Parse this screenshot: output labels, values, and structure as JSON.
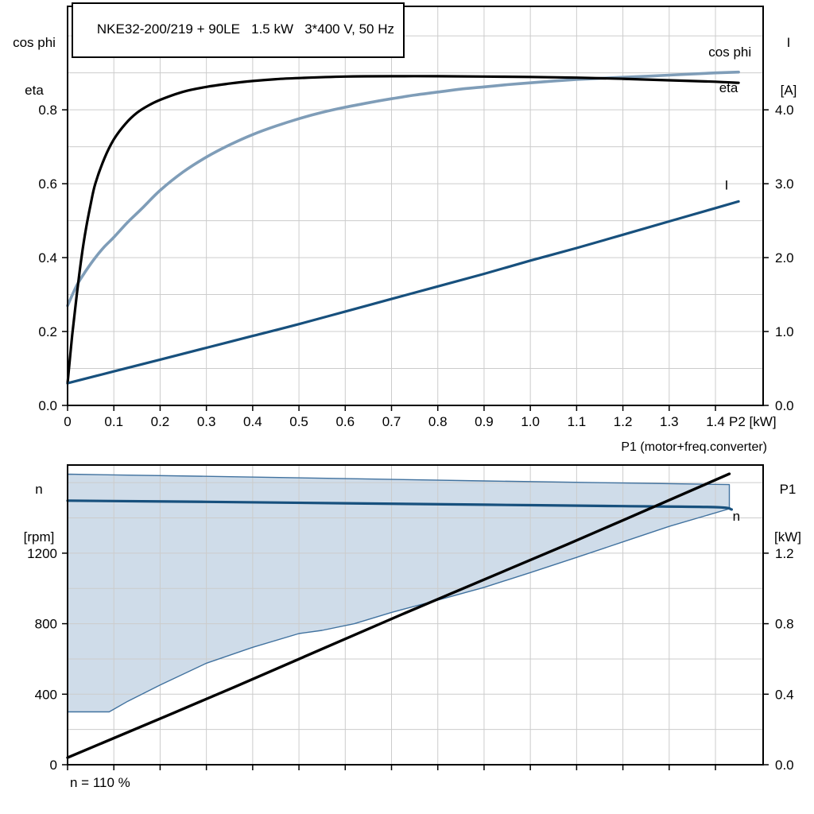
{
  "colors": {
    "black": "#000000",
    "dark_blue": "#17507d",
    "light_blue": "#7f9db8",
    "grid": "#cccccc",
    "area_fill": "#cfdce9",
    "area_edge": "#41729f",
    "frame": "#000000"
  },
  "labels": {
    "top_left_line1": "cos phi",
    "top_left_line2": "eta",
    "top_right_line1": "I",
    "top_right_line2": "[A]",
    "bottom_left_line1": "n",
    "bottom_left_line2": "[rpm]",
    "bottom_right_line1": "P1",
    "bottom_right_line2": "[kW]",
    "p1_annotation": "P1 (motor+freq.converter)",
    "footnote": "n = 110 %"
  },
  "chart_data": [
    {
      "id": "top",
      "type": "line",
      "title": "NKE32-200/219 + 90LE   1.5 kW   3*400 V, 50 Hz",
      "legend_position": "curve-end-labels",
      "x_axis": {
        "label": "P2 [kW]",
        "range": [
          0,
          1.503
        ],
        "ticks": [
          0,
          0.1,
          0.2,
          0.3,
          0.4,
          0.5,
          0.6,
          0.7,
          0.8,
          0.9,
          1.0,
          1.1,
          1.2,
          1.3,
          1.4
        ],
        "tick_labels": [
          "0",
          "0.1",
          "0.2",
          "0.3",
          "0.4",
          "0.5",
          "0.6",
          "0.7",
          "0.8",
          "0.9",
          "1.0",
          "1.1",
          "1.2",
          "1.3",
          "1.4"
        ],
        "grid_lines": [
          0.1,
          0.2,
          0.3,
          0.4,
          0.5,
          0.6,
          0.7,
          0.8,
          0.9,
          1.0,
          1.1,
          1.2,
          1.3,
          1.4
        ]
      },
      "y_left": {
        "label": "cos phi / eta",
        "range": [
          0,
          1.08
        ],
        "ticks": [
          0,
          0.2,
          0.4,
          0.6,
          0.8
        ],
        "tick_labels": [
          "0.0",
          "0.2",
          "0.4",
          "0.6",
          "0.8"
        ],
        "grid_lines": [
          0.1,
          0.2,
          0.3,
          0.4,
          0.5,
          0.6,
          0.7,
          0.8,
          0.9,
          1.0
        ]
      },
      "y_right": {
        "label": "I [A]",
        "range": [
          0,
          5.4
        ],
        "ticks": [
          0,
          1,
          2,
          3,
          4
        ],
        "tick_labels": [
          "0.0",
          "1.0",
          "2.0",
          "3.0",
          "4.0"
        ]
      },
      "series": [
        {
          "name": "cos phi",
          "axis": "left",
          "color": "light_blue",
          "width": 3.6,
          "label_at": [
            1.385,
            0.945
          ],
          "points": [
            [
              0,
              0.27
            ],
            [
              0.02,
              0.325
            ],
            [
              0.04,
              0.365
            ],
            [
              0.06,
              0.4
            ],
            [
              0.08,
              0.43
            ],
            [
              0.1,
              0.455
            ],
            [
              0.13,
              0.496
            ],
            [
              0.16,
              0.532
            ],
            [
              0.2,
              0.582
            ],
            [
              0.25,
              0.632
            ],
            [
              0.3,
              0.672
            ],
            [
              0.35,
              0.705
            ],
            [
              0.4,
              0.733
            ],
            [
              0.45,
              0.756
            ],
            [
              0.5,
              0.776
            ],
            [
              0.55,
              0.793
            ],
            [
              0.6,
              0.807
            ],
            [
              0.65,
              0.819
            ],
            [
              0.7,
              0.83
            ],
            [
              0.75,
              0.84
            ],
            [
              0.8,
              0.848
            ],
            [
              0.85,
              0.856
            ],
            [
              0.9,
              0.862
            ],
            [
              0.95,
              0.868
            ],
            [
              1.0,
              0.873
            ],
            [
              1.05,
              0.878
            ],
            [
              1.1,
              0.882
            ],
            [
              1.15,
              0.885
            ],
            [
              1.2,
              0.888
            ],
            [
              1.25,
              0.891
            ],
            [
              1.3,
              0.894
            ],
            [
              1.35,
              0.897
            ],
            [
              1.4,
              0.9
            ],
            [
              1.45,
              0.902
            ]
          ]
        },
        {
          "name": "eta",
          "axis": "left",
          "color": "black",
          "width": 3.2,
          "label_at": [
            1.408,
            0.848
          ],
          "points": [
            [
              0,
              0.06
            ],
            [
              0.01,
              0.19
            ],
            [
              0.02,
              0.3
            ],
            [
              0.03,
              0.4
            ],
            [
              0.04,
              0.48
            ],
            [
              0.05,
              0.545
            ],
            [
              0.06,
              0.6
            ],
            [
              0.08,
              0.67
            ],
            [
              0.1,
              0.72
            ],
            [
              0.125,
              0.762
            ],
            [
              0.15,
              0.792
            ],
            [
              0.175,
              0.812
            ],
            [
              0.2,
              0.827
            ],
            [
              0.25,
              0.849
            ],
            [
              0.3,
              0.862
            ],
            [
              0.35,
              0.871
            ],
            [
              0.4,
              0.878
            ],
            [
              0.45,
              0.883
            ],
            [
              0.5,
              0.886
            ],
            [
              0.6,
              0.89
            ],
            [
              0.7,
              0.891
            ],
            [
              0.8,
              0.891
            ],
            [
              0.9,
              0.89
            ],
            [
              1.0,
              0.889
            ],
            [
              1.1,
              0.887
            ],
            [
              1.2,
              0.884
            ],
            [
              1.3,
              0.88
            ],
            [
              1.4,
              0.876
            ],
            [
              1.45,
              0.873
            ]
          ]
        },
        {
          "name": "I",
          "axis": "right",
          "color": "dark_blue",
          "width": 3.2,
          "label_at": [
            1.42,
            2.92
          ],
          "points": [
            [
              0,
              0.3
            ],
            [
              0.1,
              0.46
            ],
            [
              0.2,
              0.62
            ],
            [
              0.3,
              0.78
            ],
            [
              0.4,
              0.94
            ],
            [
              0.5,
              1.1
            ],
            [
              0.6,
              1.27
            ],
            [
              0.7,
              1.44
            ],
            [
              0.8,
              1.61
            ],
            [
              0.9,
              1.78
            ],
            [
              1.0,
              1.96
            ],
            [
              1.1,
              2.13
            ],
            [
              1.2,
              2.31
            ],
            [
              1.3,
              2.49
            ],
            [
              1.4,
              2.67
            ],
            [
              1.45,
              2.76
            ]
          ]
        }
      ]
    },
    {
      "id": "bottom",
      "type": "line",
      "title": "",
      "x_axis": {
        "label": "",
        "range": [
          0,
          1.503
        ],
        "ticks": [
          0,
          0.1,
          0.2,
          0.3,
          0.4,
          0.5,
          0.6,
          0.7,
          0.8,
          0.9,
          1.0,
          1.1,
          1.2,
          1.3,
          1.4
        ],
        "tick_labels": [],
        "grid_lines": [
          0.1,
          0.2,
          0.3,
          0.4,
          0.5,
          0.6,
          0.7,
          0.8,
          0.9,
          1.0,
          1.1,
          1.2,
          1.3,
          1.4
        ]
      },
      "y_left": {
        "label": "n [rpm]",
        "range": [
          0,
          1700
        ],
        "ticks": [
          0,
          400,
          800,
          1200
        ],
        "tick_labels": [
          "0",
          "400",
          "800",
          "1200"
        ],
        "grid_lines": [
          200,
          400,
          600,
          800,
          1000,
          1200,
          1400,
          1600
        ]
      },
      "y_right": {
        "label": "P1 [kW]",
        "range": [
          0,
          1.7
        ],
        "ticks": [
          0,
          0.4,
          0.8,
          1.2
        ],
        "tick_labels": [
          "0.0",
          "0.4",
          "0.8",
          "1.2"
        ]
      },
      "area": {
        "name": "speed-range",
        "axis": "left",
        "upper": [
          [
            0,
            1648
          ],
          [
            0.3,
            1636
          ],
          [
            0.6,
            1623
          ],
          [
            0.9,
            1610
          ],
          [
            1.2,
            1598
          ],
          [
            1.43,
            1589
          ]
        ],
        "lower": [
          [
            0,
            300
          ],
          [
            0.09,
            300
          ],
          [
            0.13,
            360
          ],
          [
            0.2,
            452
          ],
          [
            0.3,
            576
          ],
          [
            0.4,
            666
          ],
          [
            0.5,
            744
          ],
          [
            0.55,
            762
          ],
          [
            0.62,
            800
          ],
          [
            0.7,
            864
          ],
          [
            0.8,
            934
          ],
          [
            0.9,
            1006
          ],
          [
            1.0,
            1090
          ],
          [
            1.1,
            1176
          ],
          [
            1.2,
            1264
          ],
          [
            1.3,
            1352
          ],
          [
            1.43,
            1452
          ]
        ]
      },
      "series": [
        {
          "name": "n",
          "axis": "left",
          "color": "dark_blue",
          "width": 3.2,
          "label_at": [
            1.437,
            1385
          ],
          "points": [
            [
              0,
              1498
            ],
            [
              0.3,
              1491
            ],
            [
              0.6,
              1483
            ],
            [
              0.9,
              1475
            ],
            [
              1.2,
              1467
            ],
            [
              1.4,
              1461
            ],
            [
              1.435,
              1448
            ]
          ]
        },
        {
          "name": "P1",
          "axis": "right",
          "color": "black",
          "width": 3.4,
          "points": [
            [
              0,
              0.04
            ],
            [
              0.36,
              0.44
            ],
            [
              0.72,
              0.85
            ],
            [
              1.08,
              1.25
            ],
            [
              1.43,
              1.65
            ]
          ]
        }
      ]
    }
  ]
}
